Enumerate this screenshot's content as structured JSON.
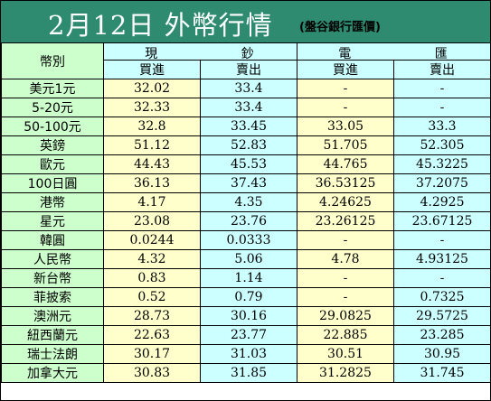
{
  "title": {
    "main": "2月12日 外幣行情",
    "source": "(盤谷銀行匯價)"
  },
  "header": {
    "currency_label": "幣別",
    "cash_chars": [
      "現",
      "鈔"
    ],
    "transfer_chars": [
      "電",
      "匯"
    ],
    "buy_label": "買進",
    "sell_label": "賣出"
  },
  "colors": {
    "title_bg": "#2e8b70",
    "name_bg": "#ccffcc",
    "buy_bg": "#ffffcc",
    "sell_bg": "#ccffff"
  },
  "rows": [
    {
      "name": "美元1元",
      "cash_buy": "32.02",
      "cash_sell": "33.4",
      "tt_buy": "-",
      "tt_sell": "-"
    },
    {
      "name": "5-20元",
      "cash_buy": "32.33",
      "cash_sell": "33.4",
      "tt_buy": "-",
      "tt_sell": "-"
    },
    {
      "name": "50-100元",
      "cash_buy": "32.8",
      "cash_sell": "33.45",
      "tt_buy": "33.05",
      "tt_sell": "33.3"
    },
    {
      "name": "英鎊",
      "cash_buy": "51.12",
      "cash_sell": "52.83",
      "tt_buy": "51.705",
      "tt_sell": "52.305"
    },
    {
      "name": "歐元",
      "cash_buy": "44.43",
      "cash_sell": "45.53",
      "tt_buy": "44.765",
      "tt_sell": "45.3225"
    },
    {
      "name": "100日圓",
      "cash_buy": "36.13",
      "cash_sell": "37.43",
      "tt_buy": "36.53125",
      "tt_sell": "37.2075"
    },
    {
      "name": "港幣",
      "cash_buy": "4.17",
      "cash_sell": "4.35",
      "tt_buy": "4.24625",
      "tt_sell": "4.2925"
    },
    {
      "name": "星元",
      "cash_buy": "23.08",
      "cash_sell": "23.76",
      "tt_buy": "23.26125",
      "tt_sell": "23.67125"
    },
    {
      "name": "韓圓",
      "cash_buy": "0.0244",
      "cash_sell": "0.0333",
      "tt_buy": "-",
      "tt_sell": "-"
    },
    {
      "name": "人民幣",
      "cash_buy": "4.32",
      "cash_sell": "5.06",
      "tt_buy": "4.78",
      "tt_sell": "4.93125"
    },
    {
      "name": "新台幣",
      "cash_buy": "0.83",
      "cash_sell": "1.14",
      "tt_buy": "-",
      "tt_sell": "-"
    },
    {
      "name": "菲披索",
      "cash_buy": "0.52",
      "cash_sell": "0.79",
      "tt_buy": "-",
      "tt_sell": "0.7325"
    },
    {
      "name": "澳洲元",
      "cash_buy": "28.73",
      "cash_sell": "30.16",
      "tt_buy": "29.0825",
      "tt_sell": "29.5725"
    },
    {
      "name": "紐西蘭元",
      "cash_buy": "22.63",
      "cash_sell": "23.77",
      "tt_buy": "22.885",
      "tt_sell": "23.285"
    },
    {
      "name": "瑞士法朗",
      "cash_buy": "30.17",
      "cash_sell": "31.03",
      "tt_buy": "30.51",
      "tt_sell": "30.95"
    },
    {
      "name": "加拿大元",
      "cash_buy": "30.83",
      "cash_sell": "31.85",
      "tt_buy": "31.2825",
      "tt_sell": "31.745"
    }
  ]
}
